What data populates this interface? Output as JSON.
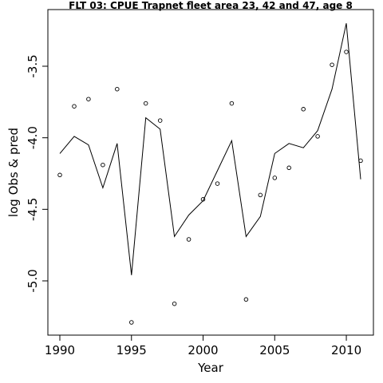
{
  "chart_data": {
    "type": "line",
    "title": "FLT 03: CPUE Trapnet fleet area 23, 42 and 47, age 8",
    "xlabel": "Year",
    "ylabel": "log Obs & pred",
    "xlim": [
      1990,
      2011
    ],
    "ylim": [
      -5.38,
      -3.18
    ],
    "x_ticks": [
      1990,
      1995,
      2000,
      2005,
      2010
    ],
    "y_ticks": [
      -3.5,
      -4.0,
      -4.5,
      -5.0
    ],
    "y_tick_labels": [
      "-3.5",
      "-4.0",
      "-4.5",
      "-5.0"
    ],
    "grid": false,
    "x": [
      1990,
      1991,
      1992,
      1993,
      1994,
      1995,
      1996,
      1997,
      1998,
      1999,
      2000,
      2001,
      2002,
      2003,
      2004,
      2005,
      2006,
      2007,
      2008,
      2009,
      2010,
      2011
    ],
    "series": [
      {
        "style": "points",
        "values": [
          -4.26,
          -3.78,
          -3.73,
          -4.19,
          -3.66,
          -5.29,
          -3.76,
          -3.88,
          -5.16,
          -4.71,
          -4.43,
          -4.32,
          -3.76,
          -5.13,
          -4.4,
          -4.28,
          -4.21,
          -3.8,
          -3.99,
          -3.49,
          -3.4,
          -4.16
        ]
      },
      {
        "style": "line",
        "values": [
          -4.11,
          -3.99,
          -4.05,
          -4.35,
          -4.04,
          -4.96,
          -3.86,
          -3.94,
          -4.69,
          -4.54,
          -4.44,
          -4.23,
          -4.02,
          -4.69,
          -4.55,
          -4.11,
          -4.04,
          -4.07,
          -3.95,
          -3.66,
          -3.2,
          -4.29
        ]
      }
    ]
  }
}
